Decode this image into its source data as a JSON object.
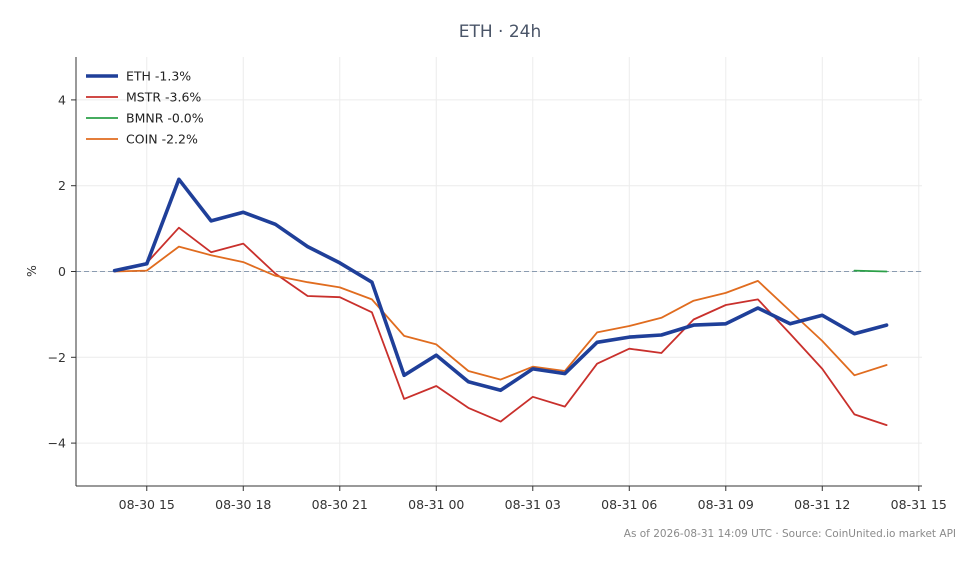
{
  "chart_data": {
    "type": "line",
    "title": "ETH · 24h",
    "ylabel": "%",
    "xlabel": "",
    "ylim": [
      -5,
      5
    ],
    "yticks": [
      -4,
      -2,
      0,
      2,
      4
    ],
    "ytick_labels": [
      "−4",
      "−2",
      "0",
      "2",
      "4"
    ],
    "xticks": [
      {
        "t": 1,
        "label": "08-30 15"
      },
      {
        "t": 4,
        "label": "08-30 18"
      },
      {
        "t": 7,
        "label": "08-30 21"
      },
      {
        "t": 10,
        "label": "08-31 00"
      },
      {
        "t": 13,
        "label": "08-31 03"
      },
      {
        "t": 16,
        "label": "08-31 06"
      },
      {
        "t": 19,
        "label": "08-31 09"
      },
      {
        "t": 22,
        "label": "08-31 12"
      },
      {
        "t": 25,
        "label": "08-31 15"
      }
    ],
    "x_hours_note": "x values are hours after 08-30 14:00",
    "xlim": [
      -1.2,
      25.1
    ],
    "grid": true,
    "zero_line": true,
    "legend_position": "top-left",
    "series": [
      {
        "name": "ETH",
        "legend": "ETH -1.3%",
        "color": "#1f3f99",
        "width": 3.6,
        "x": [
          0,
          1,
          2,
          3,
          4,
          5,
          6,
          7,
          8,
          9,
          10,
          11,
          12,
          13,
          14,
          15,
          16,
          17,
          18,
          19,
          20,
          21,
          22,
          23,
          24
        ],
        "y": [
          0.02,
          0.18,
          2.15,
          1.18,
          1.38,
          1.1,
          0.58,
          0.2,
          -0.25,
          -2.42,
          -1.95,
          -2.57,
          -2.77,
          -2.27,
          -2.38,
          -1.65,
          -1.53,
          -1.48,
          -1.25,
          -1.22,
          -0.85,
          -1.22,
          -1.02,
          -1.45,
          -1.25
        ]
      },
      {
        "name": "MSTR",
        "legend": "MSTR -3.6%",
        "color": "#c9302c",
        "width": 1.8,
        "x": [
          0,
          1,
          2,
          3,
          4,
          5,
          6,
          7,
          8,
          9,
          10,
          11,
          12,
          13,
          14,
          15,
          16,
          17,
          18,
          19,
          20,
          21,
          22,
          23,
          24
        ],
        "y": [
          0.0,
          0.2,
          1.02,
          0.45,
          0.65,
          -0.05,
          -0.57,
          -0.6,
          -0.95,
          -2.97,
          -2.67,
          -3.18,
          -3.5,
          -2.92,
          -3.15,
          -2.15,
          -1.8,
          -1.9,
          -1.12,
          -0.78,
          -0.65,
          -1.45,
          -2.27,
          -3.33,
          -3.58
        ]
      },
      {
        "name": "BMNR",
        "legend": "BMNR -0.0%",
        "color": "#2ca048",
        "width": 1.8,
        "x": [
          23,
          24
        ],
        "y": [
          0.02,
          0.0
        ]
      },
      {
        "name": "COIN",
        "legend": "COIN -2.2%",
        "color": "#e06c1f",
        "width": 1.8,
        "x": [
          0,
          1,
          2,
          3,
          4,
          5,
          6,
          7,
          8,
          9,
          10,
          11,
          12,
          13,
          14,
          15,
          16,
          17,
          18,
          19,
          20,
          21,
          22,
          23,
          24
        ],
        "y": [
          0.0,
          0.02,
          0.58,
          0.38,
          0.22,
          -0.1,
          -0.25,
          -0.37,
          -0.65,
          -1.5,
          -1.7,
          -2.32,
          -2.52,
          -2.22,
          -2.32,
          -1.42,
          -1.27,
          -1.08,
          -0.68,
          -0.5,
          -0.22,
          -0.92,
          -1.62,
          -2.42,
          -2.18
        ]
      }
    ]
  },
  "footer": "As of 2026-08-31 14:09 UTC · Source: CoinUnited.io market API"
}
